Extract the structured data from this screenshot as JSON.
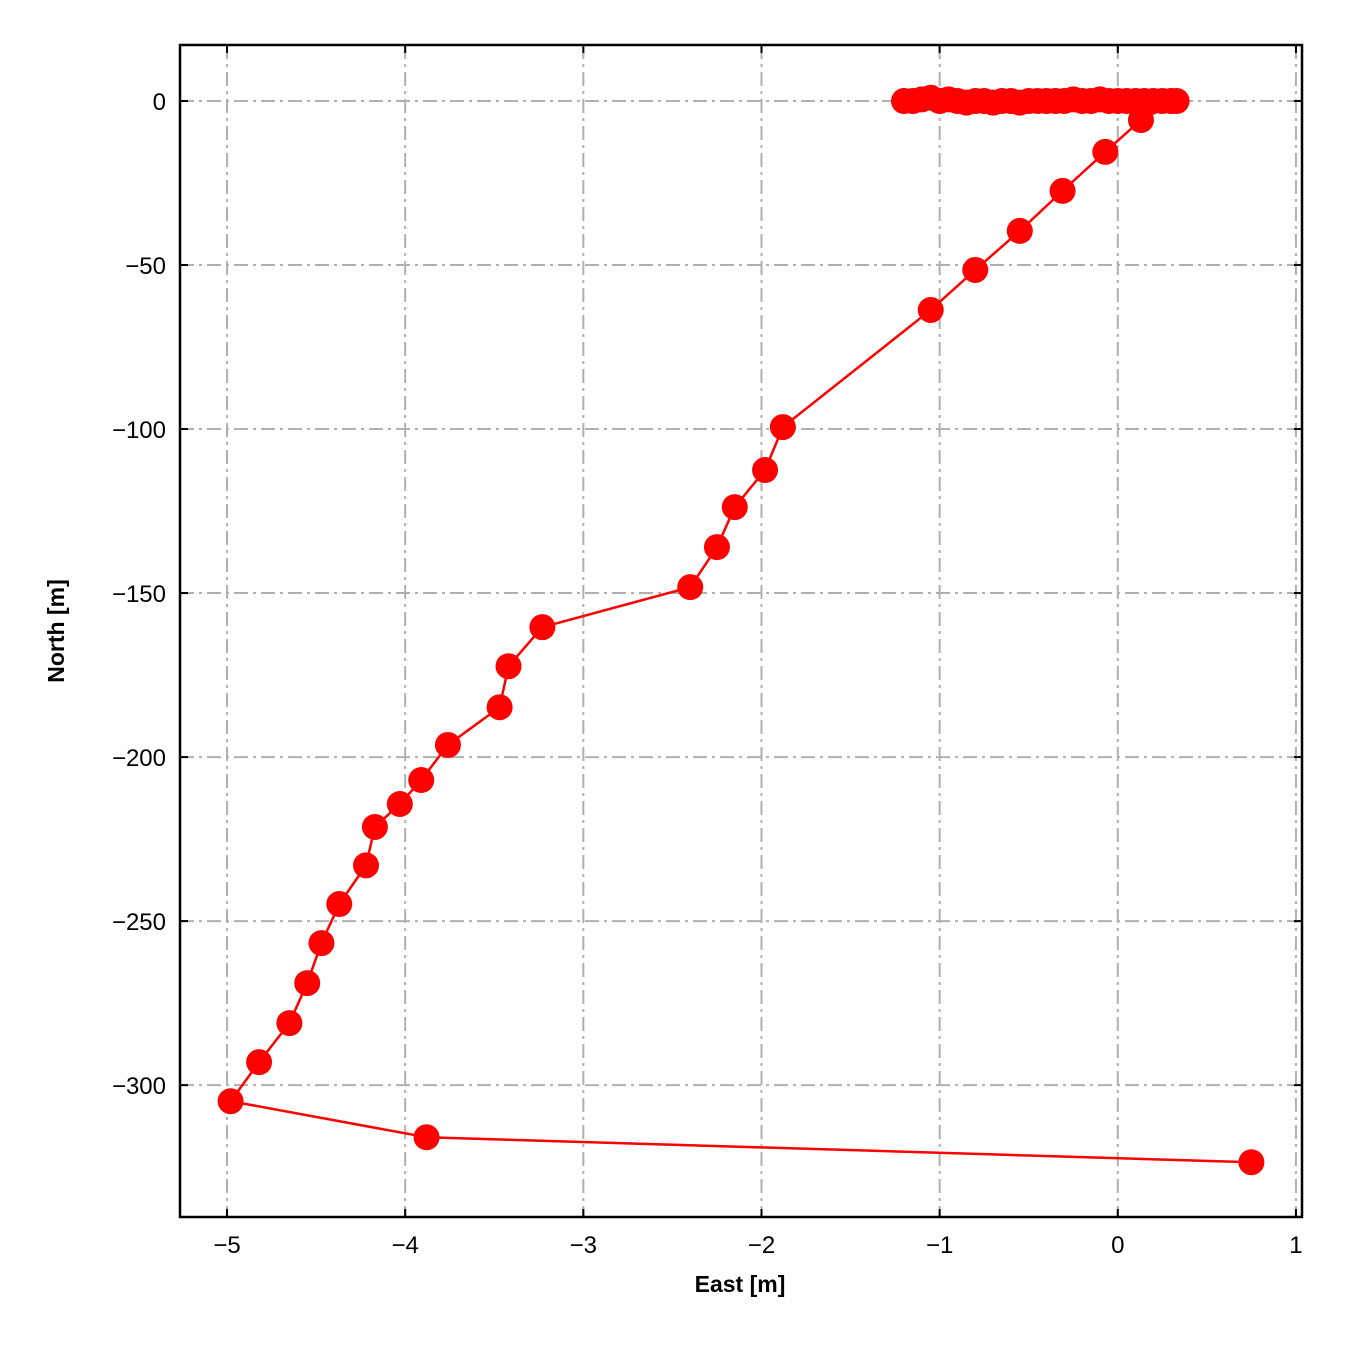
{
  "chart_data": {
    "type": "line",
    "markers": true,
    "color": "#ff0000",
    "grid": true,
    "xlabel": "East [m]",
    "ylabel": "North [m]",
    "x": [
      -1.2,
      -1.15,
      -1.1,
      -1.05,
      -1.0,
      -0.95,
      -0.9,
      -0.85,
      -0.8,
      -0.75,
      -0.7,
      -0.65,
      -0.6,
      -0.55,
      -0.5,
      -0.45,
      -0.4,
      -0.35,
      -0.3,
      -0.25,
      -0.2,
      -0.15,
      -0.1,
      -0.05,
      0,
      0.05,
      0.1,
      0.15,
      0.2,
      0.25,
      0.3,
      0.33,
      0.13,
      -0.07,
      -0.31,
      -0.55,
      -0.8,
      -1.05,
      -1.88,
      -1.98,
      -2.15,
      -2.25,
      -2.4,
      -3.23,
      -3.42,
      -3.47,
      -3.76,
      -3.91,
      -4.03,
      -4.17,
      -4.22,
      -4.37,
      -4.47,
      -4.55,
      -4.65,
      -4.82,
      -4.98,
      -3.88,
      0.75
    ],
    "values": [
      0,
      0,
      0.5,
      1,
      0,
      0.5,
      0,
      -0.5,
      0,
      0,
      -0.5,
      0,
      0,
      -0.5,
      0,
      0,
      0,
      0,
      0,
      0.5,
      0,
      0,
      0.5,
      0,
      0,
      0,
      0,
      0,
      0,
      0,
      0,
      0,
      -5.8,
      -15.5,
      -27.4,
      -39.6,
      -51.5,
      -63.7,
      -99.4,
      -112.5,
      -123.8,
      -136,
      -148.2,
      -160.4,
      -172.3,
      -184.8,
      -196.3,
      -207,
      -214.3,
      -221.3,
      -233,
      -244.8,
      -256.7,
      -268.9,
      -281.1,
      -293,
      -304.9,
      -315.9,
      -323.5
    ],
    "xlim": [
      -5.264,
      1.034
    ],
    "xticks": [
      {
        "value": -5,
        "label": "−5"
      },
      {
        "value": -4,
        "label": "−4"
      },
      {
        "value": -3,
        "label": "−3"
      },
      {
        "value": -2,
        "label": "−2"
      },
      {
        "value": -1,
        "label": "−1"
      },
      0,
      1
    ],
    "ylim": [
      -340.2,
      17.07
    ],
    "yticks": [
      0,
      {
        "value": -50,
        "label": "−50"
      },
      {
        "value": -100,
        "label": "−100"
      },
      {
        "value": -150,
        "label": "−150"
      },
      {
        "value": -200,
        "label": "−200"
      },
      {
        "value": -250,
        "label": "−250"
      },
      {
        "value": -300,
        "label": "−300"
      }
    ]
  }
}
